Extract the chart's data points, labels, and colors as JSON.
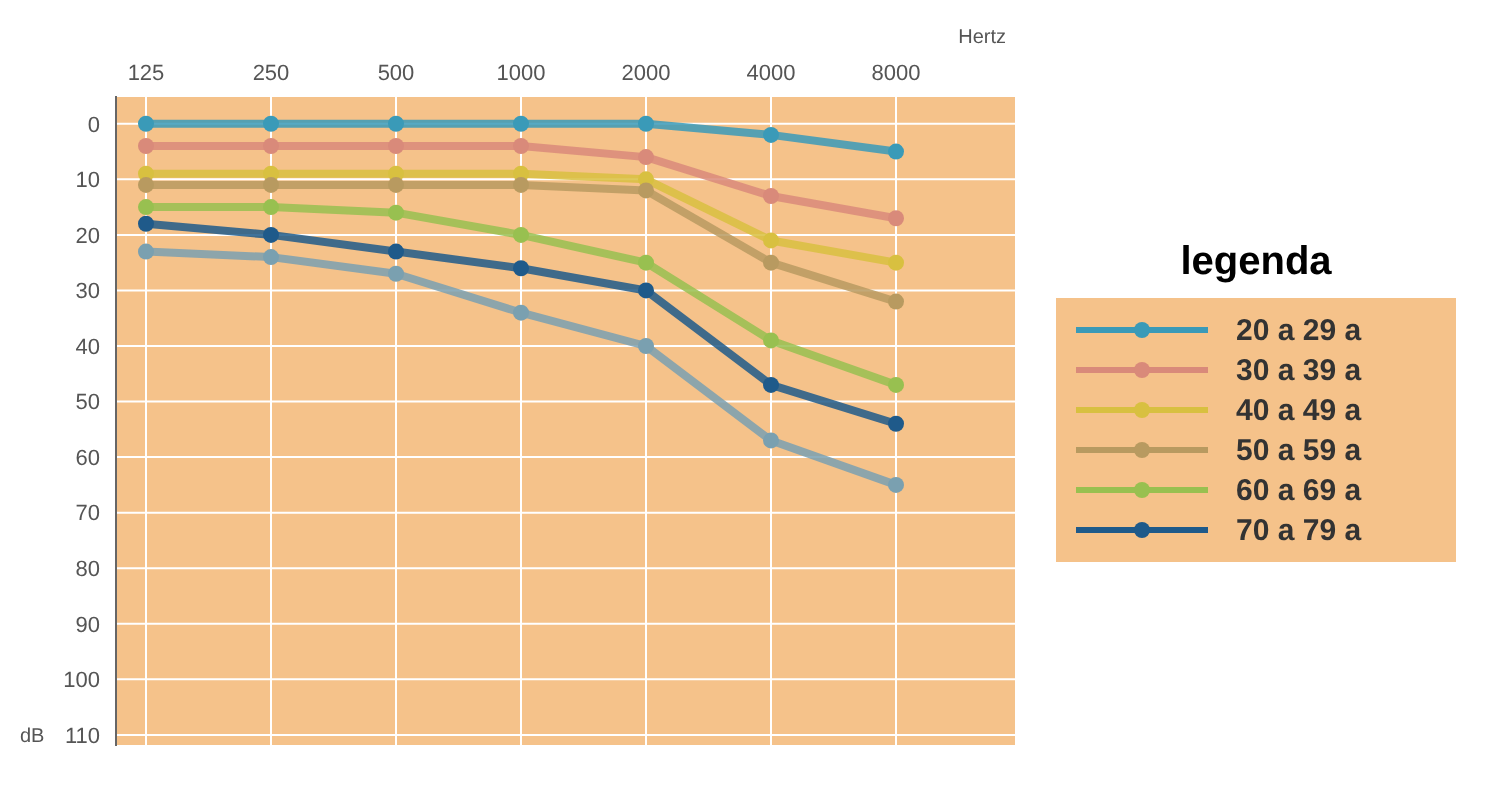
{
  "chart_data": {
    "type": "line",
    "categories": [
      "125",
      "250",
      "500",
      "1000",
      "2000",
      "4000",
      "8000"
    ],
    "xlabel": "Hertz",
    "ylabel": "dB",
    "ylim": [
      112,
      -5
    ],
    "yticks": [
      0,
      10,
      20,
      30,
      40,
      50,
      60,
      70,
      80,
      90,
      100,
      110
    ],
    "grid": true,
    "marker": "circle",
    "legend": "right",
    "legend_title": "legenda",
    "series": [
      {
        "name": "20 a 29 a",
        "color": "#3a9ab8",
        "values": [
          0,
          0,
          0,
          0,
          0,
          2,
          5
        ]
      },
      {
        "name": "30 a 39 a",
        "color": "#d98a7a",
        "values": [
          4,
          4,
          4,
          4,
          6,
          13,
          17
        ]
      },
      {
        "name": "40 a 49 a",
        "color": "#d8c040",
        "values": [
          9,
          9,
          9,
          9,
          10,
          21,
          25
        ]
      },
      {
        "name": "50 a 59 a",
        "color": "#b89a60",
        "values": [
          11,
          11,
          11,
          11,
          12,
          25,
          32
        ]
      },
      {
        "name": "60 a 69 a",
        "color": "#98c050",
        "values": [
          15,
          15,
          16,
          20,
          25,
          39,
          47
        ]
      },
      {
        "name": "70 a 79 a",
        "color": "#1f5a8a",
        "values": [
          18,
          20,
          23,
          26,
          30,
          47,
          54
        ]
      },
      {
        "color": "#7aa0b0",
        "values": [
          23,
          24,
          27,
          34,
          40,
          57,
          65
        ]
      }
    ]
  }
}
